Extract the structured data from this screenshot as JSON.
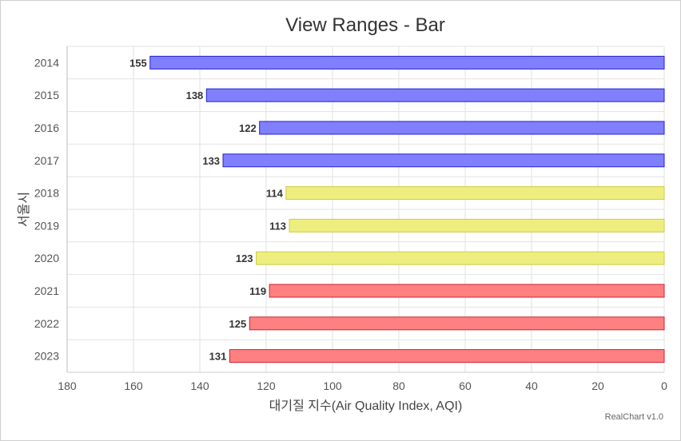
{
  "chart_data": {
    "type": "bar",
    "orientation": "horizontal",
    "x_reversed": true,
    "title": "View Ranges - Bar",
    "xlabel": "대기질 지수(Air Quality Index, AQI)",
    "ylabel": "서울시",
    "categories": [
      "2014",
      "2015",
      "2016",
      "2017",
      "2018",
      "2019",
      "2020",
      "2021",
      "2022",
      "2023"
    ],
    "values": [
      155,
      138,
      122,
      133,
      114,
      113,
      123,
      119,
      125,
      131
    ],
    "xlim": [
      0,
      180
    ],
    "x_ticks": [
      180,
      160,
      140,
      120,
      100,
      80,
      60,
      40,
      20,
      0
    ],
    "grid": true,
    "data_labels": true,
    "ranges": [
      {
        "from_index": 0,
        "to_index": 3,
        "fill": "#8080ff",
        "stroke": "#2222cc"
      },
      {
        "from_index": 4,
        "to_index": 6,
        "fill": "#eeee80",
        "stroke": "#cccc44"
      },
      {
        "from_index": 7,
        "to_index": 9,
        "fill": "#ff8080",
        "stroke": "#cc2233"
      }
    ]
  },
  "credits": "RealChart v1.0"
}
